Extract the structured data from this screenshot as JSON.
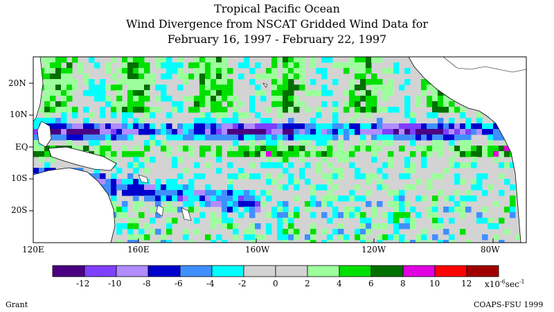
{
  "title_lines": [
    "Tropical Pacific Ocean",
    "Wind Divergence from NSCAT Gridded Wind Data for",
    "February 16, 1997 - February 22, 1997"
  ],
  "map": {
    "region": "Tropical Pacific Ocean",
    "lon_range": [
      "120E",
      "70W"
    ],
    "lat_range": [
      "30S",
      "30N"
    ],
    "lon_labels": [
      "120E",
      "160E",
      "160W",
      "120W",
      "80W"
    ],
    "lat_labels": [
      "20N",
      "10N",
      "EQ",
      "10S",
      "20S"
    ],
    "land_color": "#ffffff",
    "coastline_color": "#000000"
  },
  "colorbar": {
    "colors": [
      "#4b0082",
      "#7f3fff",
      "#b08cff",
      "#0000cd",
      "#3f8fff",
      "#00ffff",
      "#d3d3d3",
      "#d3d3d3",
      "#9cff9c",
      "#00e000",
      "#007000",
      "#e000e0",
      "#ff0000",
      "#a00000"
    ],
    "tick_labels": [
      "-12",
      "-10",
      "-8",
      "-6",
      "-4",
      "-2",
      "0",
      "2",
      "4",
      "6",
      "8",
      "10",
      "12"
    ],
    "units": "x10",
    "units_exp": "-6",
    "units_suffix": "sec",
    "units_suffix_exp": "-1"
  },
  "footer": {
    "left": "Grant",
    "right": "COAPS-FSU 1999"
  }
}
